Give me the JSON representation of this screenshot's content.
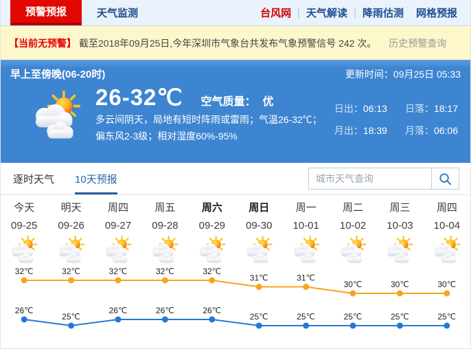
{
  "nav": {
    "tabs": [
      {
        "label": "预警预报",
        "active": true
      },
      {
        "label": "天气监测",
        "active": false
      }
    ],
    "links": [
      "台风网",
      "天气解读",
      "降雨估测",
      "网格预报"
    ]
  },
  "alert": {
    "badge": "【当前无预警】",
    "text": "截至2018年09月25日,今年深圳市气象台共发布气象预警信号 242 次。",
    "link": "历史预警查询"
  },
  "current": {
    "period": "早上至傍晚(06-20时)",
    "update_label": "更新时间：",
    "update_time": "09月25日 05:33",
    "temp_range": "26-32℃",
    "air_quality_label": "空气质量：",
    "air_quality": "优",
    "description_line1": "多云间阴天，局地有短时阵雨或雷雨；气温26-32℃；",
    "description_line2": "偏东风2-3级；相对湿度60%-95%",
    "weather_icon": "sun-cloud",
    "sun_moon": [
      {
        "label": "日出：",
        "value": "06:13"
      },
      {
        "label": "日落：",
        "value": "18:17"
      },
      {
        "label": "月出：",
        "value": "18:39"
      },
      {
        "label": "月落：",
        "value": "06:06"
      }
    ]
  },
  "tabs": {
    "hourly": "逐时天气",
    "ten_day": "10天预报"
  },
  "search": {
    "placeholder": "城市天气查询",
    "icon": "search-icon"
  },
  "forecast": {
    "days": [
      {
        "label": "今天",
        "date": "09-25",
        "bold": false,
        "icon": "sun-cloud"
      },
      {
        "label": "明天",
        "date": "09-26",
        "bold": false,
        "icon": "sun-cloud"
      },
      {
        "label": "周四",
        "date": "09-27",
        "bold": false,
        "icon": "sun-cloud"
      },
      {
        "label": "周五",
        "date": "09-28",
        "bold": false,
        "icon": "sun-cloud"
      },
      {
        "label": "周六",
        "date": "09-29",
        "bold": true,
        "icon": "sun-cloud"
      },
      {
        "label": "周日",
        "date": "09-30",
        "bold": true,
        "icon": "sun-cloud"
      },
      {
        "label": "周一",
        "date": "10-01",
        "bold": false,
        "icon": "sun-cloud"
      },
      {
        "label": "周二",
        "date": "10-02",
        "bold": false,
        "icon": "sun-cloud"
      },
      {
        "label": "周三",
        "date": "10-03",
        "bold": false,
        "icon": "sun-cloud"
      },
      {
        "label": "周四",
        "date": "10-04",
        "bold": false,
        "icon": "sun-cloud"
      }
    ]
  },
  "chart_data": {
    "type": "line",
    "categories": [
      "09-25",
      "09-26",
      "09-27",
      "09-28",
      "09-29",
      "09-30",
      "10-01",
      "10-02",
      "10-03",
      "10-04"
    ],
    "series": [
      {
        "name": "high",
        "color": "#f8a41c",
        "values": [
          32,
          32,
          32,
          32,
          32,
          31,
          31,
          30,
          30,
          30
        ]
      },
      {
        "name": "low",
        "color": "#2478d8",
        "values": [
          26,
          25,
          26,
          26,
          26,
          25,
          25,
          25,
          25,
          25
        ]
      }
    ],
    "unit": "℃",
    "grid": false,
    "legend": "none",
    "ylim": [
      24,
      33
    ]
  },
  "colors": {
    "accent_red": "#e10801",
    "link_blue": "#1d4e91",
    "panel_blue": "#3d85d1",
    "alert_bg": "#fcf8cc",
    "high_line": "#f8a41c",
    "low_line": "#2478d8"
  }
}
